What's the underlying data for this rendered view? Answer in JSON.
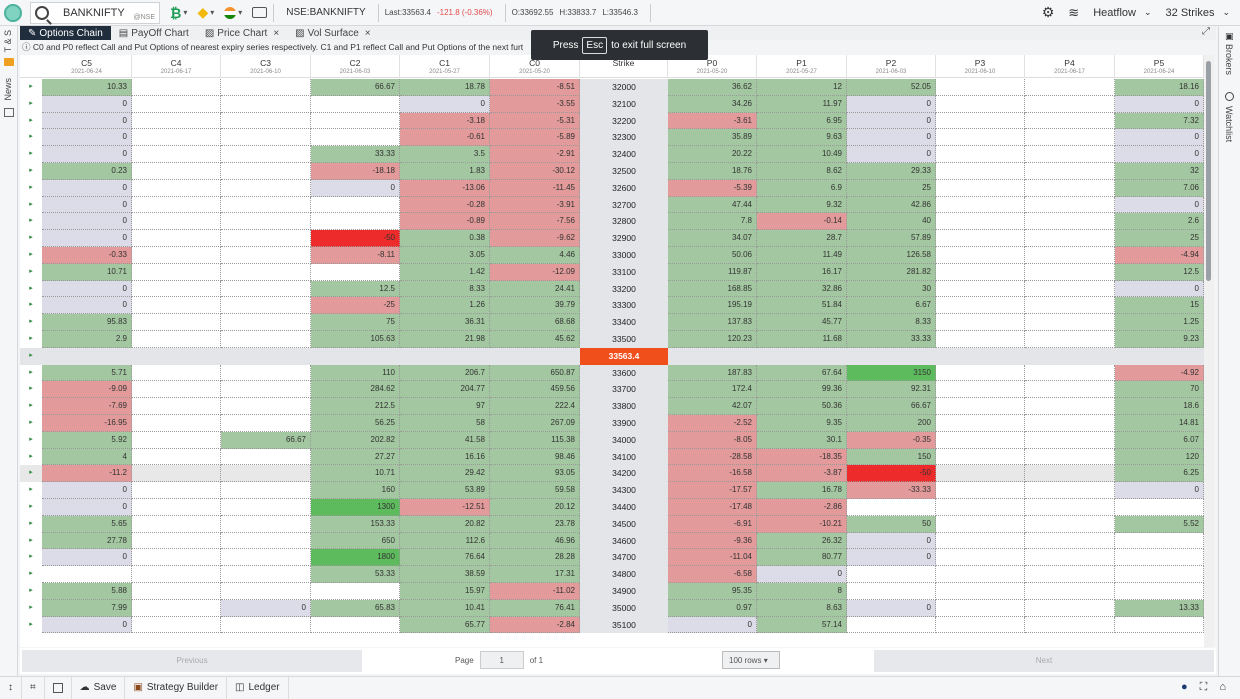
{
  "topbar": {
    "symbol": "BANKNIFTY",
    "exchange": "@NSE",
    "instrument": "NSE:BANKNIFTY",
    "last": "Last:33563.4",
    "change": "-121.8 (-0.36%)",
    "open": "O:33692.55",
    "high": "H:33833.7",
    "low": "L:33546.3",
    "heatflow_label": "Heatflow",
    "strikes_label": "32 Strikes"
  },
  "side_left": {
    "ts": "T & S",
    "news": "News"
  },
  "side_right": {
    "brokers": "Brokers",
    "watchlist": "Watchlist"
  },
  "tabs": [
    "Options Chain",
    "PayOff Chart",
    "Price Chart",
    "Vol Surface"
  ],
  "note": "C0 and P0 reflect Call and Put Options of nearest expiry series respectively. C1 and P1 reflect Call and Put Options of the next furt",
  "toast": {
    "press": "Press",
    "key": "Esc",
    "rest": "to exit full screen"
  },
  "columns": [
    {
      "name": "C5",
      "date": "2021-06-24"
    },
    {
      "name": "C4",
      "date": "2021-06-17"
    },
    {
      "name": "C3",
      "date": "2021-06-10"
    },
    {
      "name": "C2",
      "date": "2021-06-03"
    },
    {
      "name": "C1",
      "date": "2021-05-27"
    },
    {
      "name": "C0",
      "date": "2021-05-20"
    },
    {
      "name": "Strike",
      "date": ""
    },
    {
      "name": "P0",
      "date": "2021-05-20"
    },
    {
      "name": "P1",
      "date": "2021-05-27"
    },
    {
      "name": "P2",
      "date": "2021-06-03"
    },
    {
      "name": "P3",
      "date": "2021-06-10"
    },
    {
      "name": "P4",
      "date": "2021-06-17"
    },
    {
      "name": "P5",
      "date": "2021-06-24"
    }
  ],
  "spot": "33563.4",
  "rows": [
    {
      "strike": "32000",
      "c": [
        "10.33",
        "",
        "",
        "66.67",
        "18.78",
        "-8.51"
      ],
      "p": [
        "36.62",
        "12",
        "52.05",
        "",
        "",
        "18.16"
      ]
    },
    {
      "strike": "32100",
      "c": [
        "0",
        "",
        "",
        "",
        "0",
        "-3.55"
      ],
      "p": [
        "34.26",
        "11.97",
        "0",
        "",
        "",
        "0"
      ]
    },
    {
      "strike": "32200",
      "c": [
        "0",
        "",
        "",
        "",
        "-3.18",
        "-5.31"
      ],
      "p": [
        "-3.61",
        "6.95",
        "0",
        "",
        "",
        "7.32"
      ]
    },
    {
      "strike": "32300",
      "c": [
        "0",
        "",
        "",
        "",
        "-0.61",
        "-5.89"
      ],
      "p": [
        "35.89",
        "9.63",
        "0",
        "",
        "",
        "0"
      ]
    },
    {
      "strike": "32400",
      "c": [
        "0",
        "",
        "",
        "33.33",
        "3.5",
        "-2.91"
      ],
      "p": [
        "20.22",
        "10.49",
        "0",
        "",
        "",
        "0"
      ]
    },
    {
      "strike": "32500",
      "c": [
        "0.23",
        "",
        "",
        "-18.18",
        "1.83",
        "-30.12"
      ],
      "p": [
        "18.76",
        "8.62",
        "29.33",
        "",
        "",
        "32"
      ]
    },
    {
      "strike": "32600",
      "c": [
        "0",
        "",
        "",
        "0",
        "-13.06",
        "-11.45"
      ],
      "p": [
        "-5.39",
        "6.9",
        "25",
        "",
        "",
        "7.06"
      ]
    },
    {
      "strike": "32700",
      "c": [
        "0",
        "",
        "",
        "",
        "-0.28",
        "-3.91"
      ],
      "p": [
        "47.44",
        "9.32",
        "42.86",
        "",
        "",
        "0"
      ]
    },
    {
      "strike": "32800",
      "c": [
        "0",
        "",
        "",
        "",
        "-0.89",
        "-7.56"
      ],
      "p": [
        "7.8",
        "-0.14",
        "40",
        "",
        "",
        "2.6"
      ]
    },
    {
      "strike": "32900",
      "c": [
        "0",
        "",
        "",
        "-50",
        "0.38",
        "-9.62"
      ],
      "p": [
        "34.07",
        "28.7",
        "57.89",
        "",
        "",
        "25"
      ]
    },
    {
      "strike": "33000",
      "c": [
        "-0.33",
        "",
        "",
        "-8.11",
        "3.05",
        "4.46"
      ],
      "p": [
        "50.06",
        "11.49",
        "126.58",
        "",
        "",
        "-4.94"
      ]
    },
    {
      "strike": "33100",
      "c": [
        "10.71",
        "",
        "",
        "",
        "1.42",
        "-12.09"
      ],
      "p": [
        "119.87",
        "16.17",
        "281.82",
        "",
        "",
        "12.5"
      ]
    },
    {
      "strike": "33200",
      "c": [
        "0",
        "",
        "",
        "12.5",
        "8.33",
        "24.41"
      ],
      "p": [
        "168.85",
        "32.86",
        "30",
        "",
        "",
        "0"
      ]
    },
    {
      "strike": "33300",
      "c": [
        "0",
        "",
        "",
        "-25",
        "1.26",
        "39.79"
      ],
      "p": [
        "195.19",
        "51.84",
        "6.67",
        "",
        "",
        "15"
      ]
    },
    {
      "strike": "33400",
      "c": [
        "95.83",
        "",
        "",
        "75",
        "36.31",
        "68.68"
      ],
      "p": [
        "137.83",
        "45.77",
        "8.33",
        "",
        "",
        "1.25"
      ]
    },
    {
      "strike": "33500",
      "c": [
        "2.9",
        "",
        "",
        "105.63",
        "21.98",
        "45.62"
      ],
      "p": [
        "120.23",
        "11.68",
        "33.33",
        "",
        "",
        "9.23"
      ]
    },
    {
      "strike": "33600",
      "c": [
        "5.71",
        "",
        "",
        "110",
        "206.7",
        "650.87"
      ],
      "p": [
        "187.83",
        "67.64",
        "3150",
        "",
        "",
        "-4.92"
      ]
    },
    {
      "strike": "33700",
      "c": [
        "-9.09",
        "",
        "",
        "284.62",
        "204.77",
        "459.56"
      ],
      "p": [
        "172.4",
        "99.36",
        "92.31",
        "",
        "",
        "70"
      ]
    },
    {
      "strike": "33800",
      "c": [
        "-7.69",
        "",
        "",
        "212.5",
        "97",
        "222.4"
      ],
      "p": [
        "42.07",
        "50.36",
        "66.67",
        "",
        "",
        "18.6"
      ]
    },
    {
      "strike": "33900",
      "c": [
        "-16.95",
        "",
        "",
        "56.25",
        "58",
        "267.09"
      ],
      "p": [
        "-2.52",
        "9.35",
        "200",
        "",
        "",
        "14.81"
      ]
    },
    {
      "strike": "34000",
      "c": [
        "5.92",
        "",
        "66.67",
        "202.82",
        "41.58",
        "115.38"
      ],
      "p": [
        "-8.05",
        "30.1",
        "-0.35",
        "",
        "",
        "6.07"
      ]
    },
    {
      "strike": "34100",
      "c": [
        "4",
        "",
        "",
        "27.27",
        "16.16",
        "98.46"
      ],
      "p": [
        "-28.58",
        "-18.35",
        "150",
        "",
        "",
        "120"
      ]
    },
    {
      "strike": "34200",
      "c": [
        "-11.2",
        "",
        "",
        "10.71",
        "29.42",
        "93.05"
      ],
      "p": [
        "-16.58",
        "-3.87",
        "-50",
        "",
        "",
        "6.25"
      ]
    },
    {
      "strike": "34300",
      "c": [
        "0",
        "",
        "",
        "160",
        "53.89",
        "59.58"
      ],
      "p": [
        "-17.57",
        "16.78",
        "-33.33",
        "",
        "",
        "0"
      ]
    },
    {
      "strike": "34400",
      "c": [
        "0",
        "",
        "",
        "1300",
        "-12.51",
        "20.12"
      ],
      "p": [
        "-17.48",
        "-2.86",
        "",
        "",
        "",
        ""
      ]
    },
    {
      "strike": "34500",
      "c": [
        "5.65",
        "",
        "",
        "153.33",
        "20.82",
        "23.78"
      ],
      "p": [
        "-6.91",
        "-10.21",
        "50",
        "",
        "",
        "5.52"
      ]
    },
    {
      "strike": "34600",
      "c": [
        "27.78",
        "",
        "",
        "650",
        "112.6",
        "46.96"
      ],
      "p": [
        "-9.36",
        "26.32",
        "0",
        "",
        "",
        ""
      ]
    },
    {
      "strike": "34700",
      "c": [
        "0",
        "",
        "",
        "1800",
        "76.64",
        "28.28"
      ],
      "p": [
        "-11.04",
        "80.77",
        "0",
        "",
        "",
        ""
      ]
    },
    {
      "strike": "34800",
      "c": [
        "",
        "",
        "",
        "53.33",
        "38.59",
        "17.31"
      ],
      "p": [
        "-6.58",
        "0",
        "",
        "",
        "",
        ""
      ]
    },
    {
      "strike": "34900",
      "c": [
        "5.88",
        "",
        "",
        "",
        "15.97",
        "-11.02"
      ],
      "p": [
        "95.35",
        "8",
        "",
        "",
        "",
        ""
      ]
    },
    {
      "strike": "35000",
      "c": [
        "7.99",
        "",
        "0",
        "65.83",
        "10.41",
        "76.41"
      ],
      "p": [
        "0.97",
        "8.63",
        "0",
        "",
        "",
        "13.33"
      ]
    },
    {
      "strike": "35100",
      "c": [
        "0",
        "",
        "",
        "",
        "65.77",
        "-2.84"
      ],
      "p": [
        "0",
        "57.14",
        "",
        "",
        "",
        ""
      ]
    }
  ],
  "colors": {
    "green": "#a3c7a0",
    "red": "#e29a9a",
    "zero": "#dcdce8",
    "strong_red": "#ee2b2b",
    "strong_green": "#2fb52f",
    "mid_green": "#5dbb5d"
  },
  "pager": {
    "previous": "Previous",
    "next": "Next",
    "page_label": "Page",
    "page_value": "1",
    "of_label": "of 1",
    "rows_option": "100 rows"
  },
  "bottombar": {
    "save": "Save",
    "strategy_builder": "Strategy Builder",
    "ledger": "Ledger"
  }
}
